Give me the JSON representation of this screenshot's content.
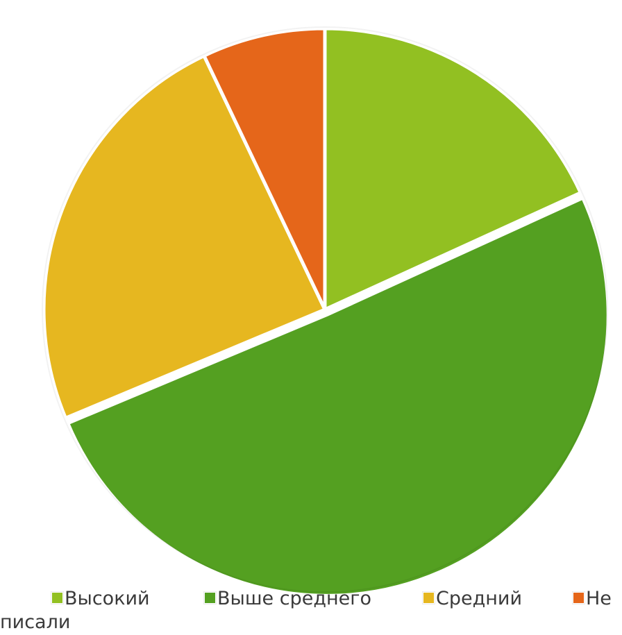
{
  "chart_data": {
    "type": "pie",
    "title": "",
    "slices": [
      {
        "label": "Высокий",
        "value": 18,
        "color": "#92C022"
      },
      {
        "label": "Выше среднего",
        "value": 50,
        "color": "#54A021"
      },
      {
        "label": "Средний",
        "value": 24,
        "color": "#E6B720"
      },
      {
        "label": "Не писали",
        "value": 7,
        "color": "#E5661A"
      }
    ],
    "legend": {
      "position": "bottom",
      "items": [
        {
          "label": "Высокий",
          "color": "#92C022"
        },
        {
          "label": "Выше среднего",
          "color": "#54A021"
        },
        {
          "label": "Средний",
          "color": "#E6B720"
        },
        {
          "label": "Не",
          "color": "#E5661A"
        }
      ],
      "wrapped_text": "писали"
    }
  }
}
